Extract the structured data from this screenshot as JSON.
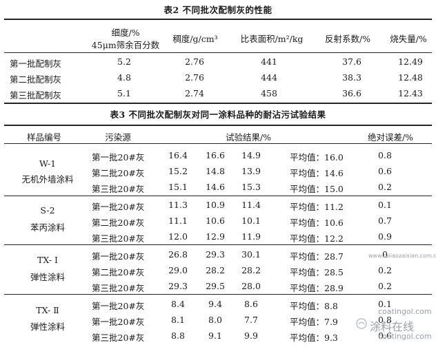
{
  "table2": {
    "title": "表2 不同批次配制灰的性能",
    "header": {
      "fineness_line1": "细度/%",
      "fineness_line2": "45μm筛余百分数",
      "density": "稠度/g/cm³",
      "surface_area": "比表面积/m²/kg",
      "reflect": "反射系数/%",
      "loss": "烧失量/%"
    },
    "rows": [
      {
        "name": "第一批配制灰",
        "fineness": "5.2",
        "density": "2.76",
        "area": "441",
        "reflect": "37.6",
        "loss": "12.49"
      },
      {
        "name": "第二批配制灰",
        "fineness": "4.8",
        "density": "2.76",
        "area": "444",
        "reflect": "38.3",
        "loss": "12.48"
      },
      {
        "name": "第三批配制灰",
        "fineness": "5.1",
        "density": "2.74",
        "area": "458",
        "reflect": "36.6",
        "loss": "12.43"
      }
    ]
  },
  "table3": {
    "title": "表3 不同批次配制灰对同一涂料品种的耐沾污试验结果",
    "header": {
      "sample": "样品编号",
      "source": "污染源",
      "result": "试验结果/%",
      "error": "绝对误差/%"
    },
    "groups": [
      {
        "code": "W-1",
        "name": "无机外墙涂料",
        "rows": [
          {
            "source": "第一批20#灰",
            "v1": "16.4",
            "v2": "16.6",
            "v3": "14.9",
            "avg": "平均值：16.0",
            "err": "0.8"
          },
          {
            "source": "第二批20#灰",
            "v1": "15.2",
            "v2": "14.8",
            "v3": "13.9",
            "avg": "平均值：14.6",
            "err": "0.6"
          },
          {
            "source": "第三批20#灰",
            "v1": "15.1",
            "v2": "14.6",
            "v3": "15.3",
            "avg": "平均值：15.0",
            "err": "0.2"
          }
        ]
      },
      {
        "code": "S-2",
        "name": "苯丙涂料",
        "rows": [
          {
            "source": "第一批20#灰",
            "v1": "11.3",
            "v2": "10.9",
            "v3": "11.4",
            "avg": "平均值：11.2",
            "err": "0.1"
          },
          {
            "source": "第二批20#灰",
            "v1": "11.1",
            "v2": "10.6",
            "v3": "10.1",
            "avg": "平均值：10.6",
            "err": "0.7"
          },
          {
            "source": "第三批20#灰",
            "v1": "12.0",
            "v2": "12.9",
            "v3": "11.9",
            "avg": "平均值：12.2",
            "err": "0.9"
          }
        ]
      },
      {
        "code": "TX- Ⅰ",
        "name": "弹性涂料",
        "rows": [
          {
            "source": "第一批20#灰",
            "v1": "26.8",
            "v2": "29.3",
            "v3": "30.1",
            "avg": "平均值：28.7",
            "err": "0"
          },
          {
            "source": "第二批20#灰",
            "v1": "29.0",
            "v2": "28.2",
            "v3": "28.2",
            "avg": "平均值：28.5",
            "err": "0.2"
          },
          {
            "source": "第三批20#灰",
            "v1": "29.3",
            "v2": "29.5",
            "v3": "28.0",
            "avg": "平均值：28.9",
            "err": "0.2"
          }
        ]
      },
      {
        "code": "TX- Ⅱ",
        "name": "弹性涂料",
        "rows": [
          {
            "source": "第一批20#灰",
            "v1": "8.4",
            "v2": "9.4",
            "v3": "8.6",
            "avg": "平均值：8.8",
            "err": "0.1"
          },
          {
            "source": "第一批20#灰",
            "v1": "8.1",
            "v2": "8.0",
            "v3": "7.7",
            "avg": "平均值：7.9",
            "err": "0.8"
          },
          {
            "source": "第三批20#灰",
            "v1": "8.8",
            "v2": "9.1",
            "v3": "9.9",
            "avg": "平均值：9.3",
            "err": "0.6"
          }
        ]
      }
    ]
  },
  "watermark": {
    "site_small": "www.tuliaozaixian.com.cn",
    "brand_cn": "涂料在线",
    "brand_en": "coatingol.com"
  }
}
